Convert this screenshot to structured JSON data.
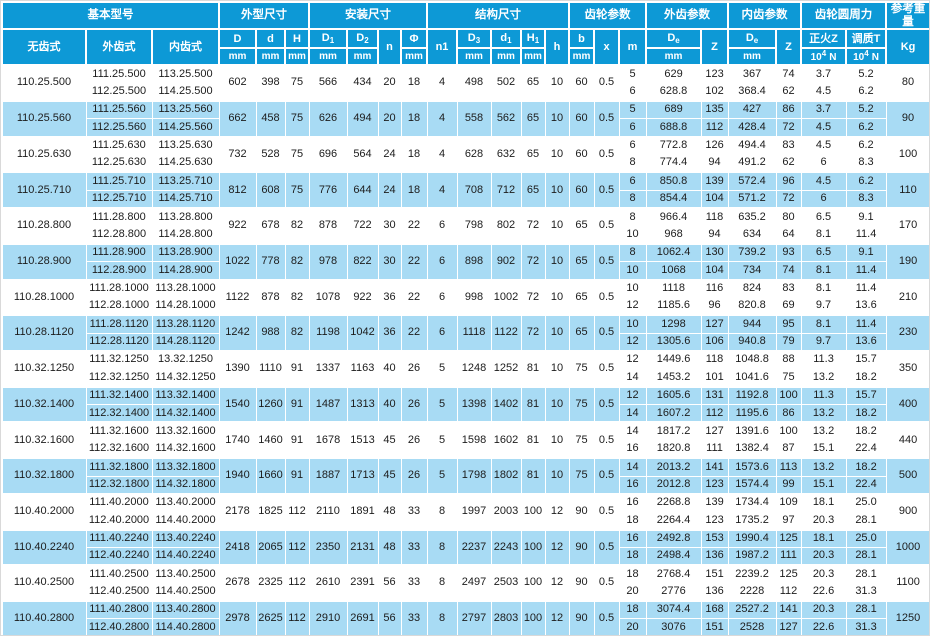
{
  "header": {
    "group_model": "基本型号",
    "group_outline": "外型尺寸",
    "group_mount": "安装尺寸",
    "group_structure": "结构尺寸",
    "group_gear": "齿轮参数",
    "group_ext_gear": "外齿参数",
    "group_int_gear": "内齿参数",
    "group_force": "齿轮圆周力",
    "group_weight": "参考重量",
    "model_plain": "无齿式",
    "model_ext": "外齿式",
    "model_int": "内齿式",
    "sym_D": "D",
    "sym_d": "d",
    "sym_H": "H",
    "sym_D1_base": "D",
    "sym_D1_sub": "1",
    "sym_D2_base": "D",
    "sym_D2_sub": "2",
    "sym_n": "n",
    "sym_phi": "Φ",
    "sym_n1": "n1",
    "sym_D3_base": "D",
    "sym_D3_sub": "3",
    "sym_d1_base": "d",
    "sym_d1_sub": "1",
    "sym_H1_base": "H",
    "sym_H1_sub": "1",
    "sym_h": "h",
    "sym_b": "b",
    "sym_x": "x",
    "sym_m": "m",
    "sym_De_base": "D",
    "sym_De_sub": "e",
    "sym_Z": "Z",
    "force_normalized": "正火Z",
    "force_tempered": "调质T",
    "unit_mm": "mm",
    "unit_force_base": "10",
    "unit_force_sup": "4",
    "unit_force_n": "N",
    "unit_kg": "Kg"
  },
  "colors": {
    "header_bg": "#0d99d6",
    "row_alt_bg": "#a8dbf4",
    "row_bg": "#ffffff",
    "text": "#1c1c1c"
  },
  "table": {
    "groups": [
      {
        "base": "110.25.500",
        "external": [
          "111.25.500",
          "112.25.500"
        ],
        "internal": [
          "113.25.500",
          "114.25.500"
        ],
        "shared": [
          "602",
          "398",
          "75",
          "566",
          "434",
          "20",
          "18",
          "4",
          "498",
          "502",
          "65",
          "10",
          "60",
          "0.5"
        ],
        "sub": [
          [
            "5",
            "629",
            "123",
            "367",
            "74",
            "3.7",
            "5.2"
          ],
          [
            "6",
            "628.8",
            "102",
            "368.4",
            "62",
            "4.5",
            "6.2"
          ]
        ],
        "weight": "80"
      },
      {
        "base": "110.25.560",
        "external": [
          "111.25.560",
          "112.25.560"
        ],
        "internal": [
          "113.25.560",
          "114.25.560"
        ],
        "shared": [
          "662",
          "458",
          "75",
          "626",
          "494",
          "20",
          "18",
          "4",
          "558",
          "562",
          "65",
          "10",
          "60",
          "0.5"
        ],
        "sub": [
          [
            "5",
            "689",
            "135",
            "427",
            "86",
            "3.7",
            "5.2"
          ],
          [
            "6",
            "688.8",
            "112",
            "428.4",
            "72",
            "4.5",
            "6.2"
          ]
        ],
        "weight": "90"
      },
      {
        "base": "110.25.630",
        "external": [
          "111.25.630",
          "112.25.630"
        ],
        "internal": [
          "113.25.630",
          "114.25.630"
        ],
        "shared": [
          "732",
          "528",
          "75",
          "696",
          "564",
          "24",
          "18",
          "4",
          "628",
          "632",
          "65",
          "10",
          "60",
          "0.5"
        ],
        "sub": [
          [
            "6",
            "772.8",
            "126",
            "494.4",
            "83",
            "4.5",
            "6.2"
          ],
          [
            "8",
            "774.4",
            "94",
            "491.2",
            "62",
            "6",
            "8.3"
          ]
        ],
        "weight": "100"
      },
      {
        "base": "110.25.710",
        "external": [
          "111.25.710",
          "112.25.710"
        ],
        "internal": [
          "113.25.710",
          "114.25.710"
        ],
        "shared": [
          "812",
          "608",
          "75",
          "776",
          "644",
          "24",
          "18",
          "4",
          "708",
          "712",
          "65",
          "10",
          "60",
          "0.5"
        ],
        "sub": [
          [
            "6",
            "850.8",
            "139",
            "572.4",
            "96",
            "4.5",
            "6.2"
          ],
          [
            "8",
            "854.4",
            "104",
            "571.2",
            "72",
            "6",
            "8.3"
          ]
        ],
        "weight": "110"
      },
      {
        "base": "110.28.800",
        "external": [
          "111.28.800",
          "112.28.800"
        ],
        "internal": [
          "113.28.800",
          "114.28.800"
        ],
        "shared": [
          "922",
          "678",
          "82",
          "878",
          "722",
          "30",
          "22",
          "6",
          "798",
          "802",
          "72",
          "10",
          "65",
          "0.5"
        ],
        "sub": [
          [
            "8",
            "966.4",
            "118",
            "635.2",
            "80",
            "6.5",
            "9.1"
          ],
          [
            "10",
            "968",
            "94",
            "634",
            "64",
            "8.1",
            "11.4"
          ]
        ],
        "weight": "170"
      },
      {
        "base": "110.28.900",
        "external": [
          "111.28.900",
          "112.28.900"
        ],
        "internal": [
          "113.28.900",
          "114.28.900"
        ],
        "shared": [
          "1022",
          "778",
          "82",
          "978",
          "822",
          "30",
          "22",
          "6",
          "898",
          "902",
          "72",
          "10",
          "65",
          "0.5"
        ],
        "sub": [
          [
            "8",
            "1062.4",
            "130",
            "739.2",
            "93",
            "6.5",
            "9.1"
          ],
          [
            "10",
            "1068",
            "104",
            "734",
            "74",
            "8.1",
            "11.4"
          ]
        ],
        "weight": "190"
      },
      {
        "base": "110.28.1000",
        "external": [
          "111.28.1000",
          "112.28.1000"
        ],
        "internal": [
          "113.28.1000",
          "114.28.1000"
        ],
        "shared": [
          "1122",
          "878",
          "82",
          "1078",
          "922",
          "36",
          "22",
          "6",
          "998",
          "1002",
          "72",
          "10",
          "65",
          "0.5"
        ],
        "sub": [
          [
            "10",
            "1118",
            "116",
            "824",
            "83",
            "8.1",
            "11.4"
          ],
          [
            "12",
            "1185.6",
            "96",
            "820.8",
            "69",
            "9.7",
            "13.6"
          ]
        ],
        "weight": "210"
      },
      {
        "base": "110.28.1120",
        "external": [
          "111.28.1120",
          "112.28.1120"
        ],
        "internal": [
          "113.28.1120",
          "114.28.1120"
        ],
        "shared": [
          "1242",
          "988",
          "82",
          "1198",
          "1042",
          "36",
          "22",
          "6",
          "1118",
          "1122",
          "72",
          "10",
          "65",
          "0.5"
        ],
        "sub": [
          [
            "10",
            "1298",
            "127",
            "944",
            "95",
            "8.1",
            "11.4"
          ],
          [
            "12",
            "1305.6",
            "106",
            "940.8",
            "79",
            "9.7",
            "13.6"
          ]
        ],
        "weight": "230"
      },
      {
        "base": "110.32.1250",
        "external": [
          "111.32.1250",
          "112.32.1250"
        ],
        "internal": [
          "13.32.1250",
          "114.32.1250"
        ],
        "shared": [
          "1390",
          "1110",
          "91",
          "1337",
          "1163",
          "40",
          "26",
          "5",
          "1248",
          "1252",
          "81",
          "10",
          "75",
          "0.5"
        ],
        "sub": [
          [
            "12",
            "1449.6",
            "118",
            "1048.8",
            "88",
            "11.3",
            "15.7"
          ],
          [
            "14",
            "1453.2",
            "101",
            "1041.6",
            "75",
            "13.2",
            "18.2"
          ]
        ],
        "weight": "350"
      },
      {
        "base": "110.32.1400",
        "external": [
          "111.32.1400",
          "112.32.1400"
        ],
        "internal": [
          "113.32.1400",
          "114.32.1400"
        ],
        "shared": [
          "1540",
          "1260",
          "91",
          "1487",
          "1313",
          "40",
          "26",
          "5",
          "1398",
          "1402",
          "81",
          "10",
          "75",
          "0.5"
        ],
        "sub": [
          [
            "12",
            "1605.6",
            "131",
            "1192.8",
            "100",
            "11.3",
            "15.7"
          ],
          [
            "14",
            "1607.2",
            "112",
            "1195.6",
            "86",
            "13.2",
            "18.2"
          ]
        ],
        "weight": "400"
      },
      {
        "base": "110.32.1600",
        "external": [
          "111.32.1600",
          "112.32.1600"
        ],
        "internal": [
          "113.32.1600",
          "114.32.1600"
        ],
        "shared": [
          "1740",
          "1460",
          "91",
          "1678",
          "1513",
          "45",
          "26",
          "5",
          "1598",
          "1602",
          "81",
          "10",
          "75",
          "0.5"
        ],
        "sub": [
          [
            "14",
            "1817.2",
            "127",
            "1391.6",
            "100",
            "13.2",
            "18.2"
          ],
          [
            "16",
            "1820.8",
            "111",
            "1382.4",
            "87",
            "15.1",
            "22.4"
          ]
        ],
        "weight": "440"
      },
      {
        "base": "110.32.1800",
        "external": [
          "111.32.1800",
          "112.32.1800"
        ],
        "internal": [
          "113.32.1800",
          "114.32.1800"
        ],
        "shared": [
          "1940",
          "1660",
          "91",
          "1887",
          "1713",
          "45",
          "26",
          "5",
          "1798",
          "1802",
          "81",
          "10",
          "75",
          "0.5"
        ],
        "sub": [
          [
            "14",
            "2013.2",
            "141",
            "1573.6",
            "113",
            "13.2",
            "18.2"
          ],
          [
            "16",
            "2012.8",
            "123",
            "1574.4",
            "99",
            "15.1",
            "22.4"
          ]
        ],
        "weight": "500"
      },
      {
        "base": "110.40.2000",
        "external": [
          "111.40.2000",
          "112.40.2000"
        ],
        "internal": [
          "113.40.2000",
          "114.40.2000"
        ],
        "shared": [
          "2178",
          "1825",
          "112",
          "2110",
          "1891",
          "48",
          "33",
          "8",
          "1997",
          "2003",
          "100",
          "12",
          "90",
          "0.5"
        ],
        "sub": [
          [
            "16",
            "2268.8",
            "139",
            "1734.4",
            "109",
            "18.1",
            "25.0"
          ],
          [
            "18",
            "2264.4",
            "123",
            "1735.2",
            "97",
            "20.3",
            "28.1"
          ]
        ],
        "weight": "900"
      },
      {
        "base": "110.40.2240",
        "external": [
          "111.40.2240",
          "112.40.2240"
        ],
        "internal": [
          "113.40.2240",
          "114.40.2240"
        ],
        "shared": [
          "2418",
          "2065",
          "112",
          "2350",
          "2131",
          "48",
          "33",
          "8",
          "2237",
          "2243",
          "100",
          "12",
          "90",
          "0.5"
        ],
        "sub": [
          [
            "16",
            "2492.8",
            "153",
            "1990.4",
            "125",
            "18.1",
            "25.0"
          ],
          [
            "18",
            "2498.4",
            "136",
            "1987.2",
            "111",
            "20.3",
            "28.1"
          ]
        ],
        "weight": "1000"
      },
      {
        "base": "110.40.2500",
        "external": [
          "111.40.2500",
          "112.40.2500"
        ],
        "internal": [
          "113.40.2500",
          "114.40.2500"
        ],
        "shared": [
          "2678",
          "2325",
          "112",
          "2610",
          "2391",
          "56",
          "33",
          "8",
          "2497",
          "2503",
          "100",
          "12",
          "90",
          "0.5"
        ],
        "sub": [
          [
            "18",
            "2768.4",
            "151",
            "2239.2",
            "125",
            "20.3",
            "28.1"
          ],
          [
            "20",
            "2776",
            "136",
            "2228",
            "112",
            "22.6",
            "31.3"
          ]
        ],
        "weight": "1100"
      },
      {
        "base": "110.40.2800",
        "external": [
          "111.40.2800",
          "112.40.2800"
        ],
        "internal": [
          "113.40.2800",
          "114.40.2800"
        ],
        "shared": [
          "2978",
          "2625",
          "112",
          "2910",
          "2691",
          "56",
          "33",
          "8",
          "2797",
          "2803",
          "100",
          "12",
          "90",
          "0.5"
        ],
        "sub": [
          [
            "18",
            "3074.4",
            "168",
            "2527.2",
            "141",
            "20.3",
            "28.1"
          ],
          [
            "20",
            "3076",
            "151",
            "2528",
            "127",
            "22.6",
            "31.3"
          ]
        ],
        "weight": "1250"
      }
    ]
  }
}
